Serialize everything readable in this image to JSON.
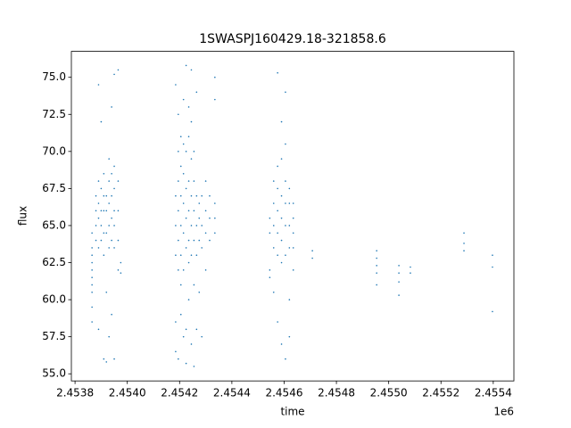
{
  "chart_data": {
    "type": "scatter",
    "title": "1SWASPJ160429.18-321858.6",
    "x_label": "time",
    "y_label": "flux",
    "x_offset_label": "1e6",
    "color": "#1f77b4",
    "xlim": [
      2453786,
      2455479
    ],
    "ylim": [
      54.52,
      76.75
    ],
    "xticks": [
      {
        "value": 2453800,
        "label": "2.4538"
      },
      {
        "value": 2454000,
        "label": "2.4540"
      },
      {
        "value": 2454200,
        "label": "2.4542"
      },
      {
        "value": 2454400,
        "label": "2.4544"
      },
      {
        "value": 2454600,
        "label": "2.4546"
      },
      {
        "value": 2454800,
        "label": "2.4548"
      },
      {
        "value": 2455000,
        "label": "2.4550"
      },
      {
        "value": 2455200,
        "label": "2.4552"
      },
      {
        "value": 2455400,
        "label": "2.4554"
      }
    ],
    "yticks": [
      {
        "value": 55,
        "label": "55.0"
      },
      57.5,
      {
        "value": 60,
        "label": "60.0"
      },
      62.5,
      {
        "value": 65,
        "label": "65.0"
      },
      67.5,
      {
        "value": 70,
        "label": "70.0"
      },
      72.5,
      {
        "value": 75,
        "label": "75.0"
      }
    ],
    "x": [
      2453865,
      2453865,
      2453865,
      2453865,
      2453865,
      2453865,
      2453865,
      2453865,
      2453865,
      2453865,
      2453880,
      2453880,
      2453880,
      2453880,
      2453890,
      2453890,
      2453890,
      2453890,
      2453890,
      2453890,
      2453900,
      2453900,
      2453900,
      2453900,
      2453900,
      2453910,
      2453910,
      2453910,
      2453910,
      2453910,
      2453910,
      2453920,
      2453920,
      2453920,
      2453920,
      2453920,
      2453930,
      2453930,
      2453930,
      2453930,
      2453930,
      2453930,
      2453940,
      2453940,
      2453940,
      2453940,
      2453940,
      2453940,
      2453950,
      2453950,
      2453950,
      2453950,
      2453950,
      2453950,
      2453950,
      2453965,
      2453965,
      2453965,
      2453965,
      2453965,
      2453975,
      2453975,
      2454185,
      2454185,
      2454185,
      2454185,
      2454185,
      2454185,
      2454195,
      2454195,
      2454195,
      2454195,
      2454195,
      2454195,
      2454195,
      2454205,
      2454205,
      2454205,
      2454205,
      2454205,
      2454205,
      2454205,
      2454215,
      2454215,
      2454215,
      2454215,
      2454215,
      2454215,
      2454215,
      2454225,
      2454225,
      2454225,
      2454225,
      2454225,
      2454225,
      2454225,
      2454235,
      2454235,
      2454235,
      2454235,
      2454235,
      2454235,
      2454235,
      2454245,
      2454245,
      2454245,
      2454245,
      2454245,
      2454245,
      2454245,
      2454255,
      2454255,
      2454255,
      2454255,
      2454255,
      2454255,
      2454265,
      2454265,
      2454265,
      2454265,
      2454265,
      2454275,
      2454275,
      2454275,
      2454275,
      2454285,
      2454285,
      2454285,
      2454285,
      2454300,
      2454300,
      2454300,
      2454300,
      2454315,
      2454315,
      2454315,
      2454335,
      2454335,
      2454335,
      2454335,
      2454335,
      2454545,
      2454545,
      2454545,
      2454545,
      2454560,
      2454560,
      2454560,
      2454560,
      2454560,
      2454575,
      2454575,
      2454575,
      2454575,
      2454575,
      2454575,
      2454575,
      2454590,
      2454590,
      2454590,
      2454590,
      2454590,
      2454590,
      2454590,
      2454605,
      2454605,
      2454605,
      2454605,
      2454605,
      2454605,
      2454605,
      2454620,
      2454620,
      2454620,
      2454620,
      2454620,
      2454620,
      2454635,
      2454635,
      2454635,
      2454635,
      2454635,
      2454708,
      2454708,
      2454954,
      2454954,
      2454954,
      2454954,
      2454954,
      2455039,
      2455039,
      2455039,
      2455039,
      2455083,
      2455083,
      2455288,
      2455288,
      2455288,
      2455397,
      2455397,
      2455397
    ],
    "values": [
      58.5,
      59.5,
      60.5,
      61,
      61.5,
      62,
      62.5,
      63,
      63.5,
      64.5,
      64,
      65,
      66,
      67,
      63.5,
      65.5,
      66.5,
      68,
      74.5,
      58,
      64,
      65,
      66,
      67.5,
      72,
      63,
      64.5,
      66,
      67,
      68.5,
      56,
      64.5,
      66,
      67,
      60.5,
      55.8,
      63.5,
      65,
      66.5,
      68,
      69.5,
      57.5,
      64,
      65.5,
      67,
      68.5,
      73,
      59,
      63.5,
      65,
      66,
      67.5,
      69,
      75.2,
      56,
      64,
      66,
      68,
      75.5,
      62,
      62.5,
      61.8,
      63,
      65,
      67,
      74.5,
      58.5,
      56.5,
      62,
      64,
      66,
      68,
      70,
      72.5,
      56,
      63,
      65,
      67,
      69,
      71,
      61,
      59,
      62,
      64.5,
      66.5,
      68.5,
      70.5,
      73.5,
      57.5,
      63.5,
      65.5,
      67.5,
      70,
      75.8,
      58,
      55.7,
      62.5,
      64,
      66,
      68,
      71,
      73,
      60,
      63,
      65,
      67,
      69.5,
      72,
      75.5,
      57,
      64,
      66,
      68,
      70,
      55.5,
      61,
      63,
      65,
      67,
      74,
      58,
      64,
      65.5,
      66.5,
      60.5,
      63.5,
      65,
      67,
      57.5,
      64.5,
      66,
      68,
      62,
      64,
      65.5,
      67,
      64.5,
      65.5,
      66.5,
      73.5,
      75,
      61.5,
      62,
      64.5,
      65.5,
      63.5,
      65,
      66.5,
      68,
      60.5,
      63,
      64.5,
      66,
      67.5,
      69,
      75.3,
      58.5,
      62.5,
      64,
      65.5,
      67,
      69.5,
      72,
      57,
      63,
      65,
      66.5,
      68,
      70.5,
      74,
      56,
      63.5,
      65,
      66.5,
      67.5,
      60,
      57.5,
      63.5,
      64.5,
      65.5,
      66.5,
      62,
      62.8,
      63.3,
      61,
      61.8,
      62.3,
      62.8,
      63.3,
      60.3,
      61.2,
      61.8,
      62.3,
      61.8,
      62.2,
      63.3,
      63.8,
      64.5,
      59.2,
      62.2,
      63
    ]
  }
}
